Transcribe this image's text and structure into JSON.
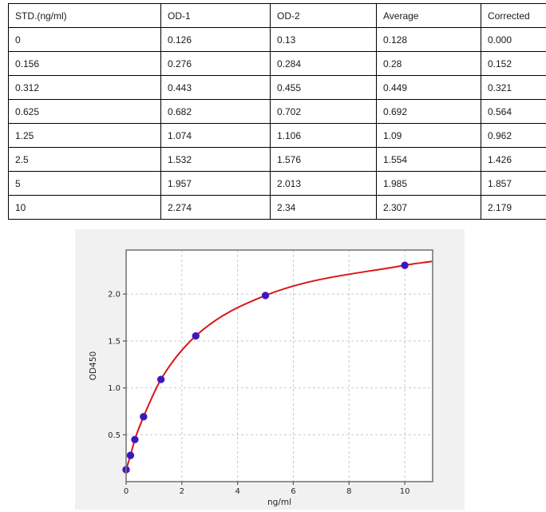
{
  "table": {
    "columns": [
      "STD.(ng/ml)",
      "OD-1",
      "OD-2",
      "Average",
      "Corrected"
    ],
    "rows": [
      [
        "0",
        "0.126",
        "0.13",
        "0.128",
        "0.000"
      ],
      [
        "0.156",
        "0.276",
        "0.284",
        "0.28",
        "0.152"
      ],
      [
        "0.312",
        "0.443",
        "0.455",
        "0.449",
        "0.321"
      ],
      [
        "0.625",
        "0.682",
        "0.702",
        "0.692",
        "0.564"
      ],
      [
        "1.25",
        "1.074",
        "1.106",
        "1.09",
        "0.962"
      ],
      [
        "2.5",
        "1.532",
        "1.576",
        "1.554",
        "1.426"
      ],
      [
        "5",
        "1.957",
        "2.013",
        "1.985",
        "1.857"
      ],
      [
        "10",
        "2.274",
        "2.34",
        "2.307",
        "2.179"
      ]
    ]
  },
  "chart_data": {
    "type": "scatter",
    "title": "",
    "xlabel": "ng/ml",
    "ylabel": "OD450",
    "x": [
      0,
      0.156,
      0.312,
      0.625,
      1.25,
      2.5,
      5,
      10
    ],
    "y": [
      0.128,
      0.28,
      0.449,
      0.692,
      1.09,
      1.554,
      1.985,
      2.307
    ],
    "fit_curve": "4PL fit through points, extended to right edge",
    "fit_curve_end": {
      "x": 11,
      "y": 2.35
    },
    "xlim": [
      0,
      11
    ],
    "ylim": [
      0,
      2.47
    ],
    "xticks": [
      0,
      2,
      4,
      6,
      8,
      10
    ],
    "xticklabels": [
      "0",
      "2",
      "4",
      "6",
      "8",
      "10"
    ],
    "yticks": [
      0.5,
      1.0,
      1.5,
      2.0
    ],
    "yticklabels": [
      "0.5",
      "1.0",
      "1.5",
      "2.0"
    ],
    "grid": true,
    "legend": "none",
    "colors": {
      "figure_bg": "#f1f1f1",
      "plot_bg": "#ffffff",
      "frame": "#787878",
      "grid": "#c9c9c9",
      "tick_text": "#262626",
      "line": "#dd1414",
      "point_fill": "#2a1fc4",
      "point_edge": "#6712b5"
    }
  }
}
